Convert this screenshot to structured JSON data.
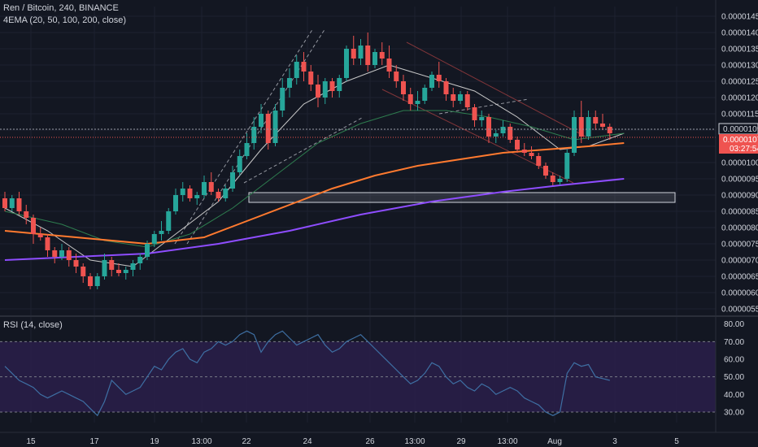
{
  "header": {
    "symbol_line": "Ren / Bitcoin, 240, BINANCE",
    "indicator_line": "4EMA (20, 50, 100, 200, close)"
  },
  "rsi_panel": {
    "title": "RSI (14, close)"
  },
  "price_badges": {
    "current": "0.00001095",
    "last": "0.00001074",
    "countdown": "03:27:54"
  },
  "colors": {
    "background": "#131722",
    "grid": "#1e2230",
    "up": "#26a69a",
    "down": "#ef5350",
    "ema20": "#c8c8c8",
    "ema50": "#2e7d4f",
    "ema100": "#ff7a2f",
    "ema200": "#8e4dff",
    "rsi_line": "#3e6fa3",
    "rsi_band": "#2a1f4a"
  },
  "chart_data": {
    "type": "line",
    "price_axis": {
      "ticks": [
        "0.00001450",
        "0.00001400",
        "0.00001350",
        "0.00001300",
        "0.00001250",
        "0.00001200",
        "0.00001150",
        "0.00001100",
        "0.00001050",
        "0.00001000",
        "0.00000950",
        "0.00000900",
        "0.00000850",
        "0.00000800",
        "0.00000750",
        "0.00000700",
        "0.00000650",
        "0.00000600",
        "0.00000550"
      ],
      "ylim": [
        5.3e-06,
        1.48e-05
      ]
    },
    "rsi_axis": {
      "ticks": [
        "80.00",
        "70.00",
        "60.00",
        "50.00",
        "40.00",
        "30.00"
      ],
      "ylim": [
        24,
        84
      ],
      "band": [
        30,
        70
      ]
    },
    "x_labels": [
      "15",
      "17",
      "19",
      "13:00",
      "22",
      "24",
      "26",
      "13:00",
      "29",
      "13:00",
      "Aug",
      "3",
      "5"
    ],
    "candles": [
      [
        8.9,
        9.1,
        8.5,
        8.6
      ],
      [
        8.6,
        9.0,
        8.5,
        8.9
      ],
      [
        8.9,
        9.1,
        8.4,
        8.5
      ],
      [
        8.5,
        8.7,
        8.1,
        8.3
      ],
      [
        8.3,
        8.4,
        7.5,
        7.8
      ],
      [
        7.8,
        8.0,
        7.6,
        7.7
      ],
      [
        7.7,
        7.8,
        7.1,
        7.3
      ],
      [
        7.3,
        7.4,
        6.9,
        7.1
      ],
      [
        7.1,
        7.5,
        7.0,
        7.3
      ],
      [
        7.3,
        7.4,
        6.8,
        7.0
      ],
      [
        7.0,
        7.2,
        6.6,
        6.8
      ],
      [
        6.8,
        6.9,
        6.3,
        6.5
      ],
      [
        6.5,
        6.6,
        6.1,
        6.2
      ],
      [
        6.2,
        6.6,
        6.1,
        6.5
      ],
      [
        6.5,
        7.2,
        6.4,
        7.0
      ],
      [
        7.0,
        7.1,
        6.5,
        6.7
      ],
      [
        6.7,
        6.9,
        6.5,
        6.6
      ],
      [
        6.6,
        6.8,
        6.4,
        6.7
      ],
      [
        6.7,
        7.0,
        6.5,
        6.9
      ],
      [
        6.9,
        7.2,
        6.7,
        7.1
      ],
      [
        7.1,
        7.6,
        7.0,
        7.5
      ],
      [
        7.5,
        7.9,
        7.4,
        7.8
      ],
      [
        7.8,
        8.2,
        7.6,
        7.9
      ],
      [
        7.9,
        8.6,
        7.8,
        8.5
      ],
      [
        8.5,
        9.2,
        8.4,
        9.0
      ],
      [
        9.0,
        9.4,
        8.8,
        9.2
      ],
      [
        9.2,
        9.3,
        8.8,
        8.9
      ],
      [
        8.9,
        9.1,
        8.7,
        9.0
      ],
      [
        9.0,
        9.6,
        8.9,
        9.4
      ],
      [
        9.4,
        9.7,
        9.0,
        9.1
      ],
      [
        9.1,
        9.2,
        8.8,
        8.9
      ],
      [
        8.9,
        9.3,
        8.8,
        9.2
      ],
      [
        9.2,
        9.9,
        9.1,
        9.7
      ],
      [
        9.7,
        10.4,
        9.6,
        10.2
      ],
      [
        10.2,
        10.9,
        10.1,
        10.6
      ],
      [
        10.6,
        11.4,
        10.4,
        11.1
      ],
      [
        11.1,
        11.8,
        10.9,
        11.5
      ],
      [
        11.5,
        11.6,
        10.4,
        10.6
      ],
      [
        10.6,
        11.8,
        10.5,
        11.6
      ],
      [
        11.6,
        12.6,
        11.4,
        12.3
      ],
      [
        12.3,
        12.9,
        12.0,
        12.6
      ],
      [
        12.6,
        13.3,
        12.4,
        13.1
      ],
      [
        13.1,
        13.4,
        12.5,
        12.8
      ],
      [
        12.8,
        13.0,
        12.2,
        12.4
      ],
      [
        12.4,
        12.7,
        11.7,
        12.0
      ],
      [
        12.0,
        12.6,
        11.8,
        12.5
      ],
      [
        12.5,
        12.6,
        12.0,
        12.2
      ],
      [
        12.2,
        12.7,
        12.0,
        12.6
      ],
      [
        12.6,
        13.6,
        12.5,
        13.5
      ],
      [
        13.5,
        13.9,
        13.0,
        13.2
      ],
      [
        13.2,
        13.8,
        13.0,
        13.6
      ],
      [
        13.6,
        14.0,
        12.8,
        13.0
      ],
      [
        13.0,
        13.5,
        12.9,
        13.4
      ],
      [
        13.4,
        13.7,
        13.0,
        13.2
      ],
      [
        13.2,
        13.6,
        12.6,
        12.8
      ],
      [
        12.8,
        13.0,
        12.3,
        12.5
      ],
      [
        12.5,
        12.7,
        11.9,
        12.1
      ],
      [
        12.1,
        12.3,
        11.6,
        11.8
      ],
      [
        11.8,
        12.2,
        11.6,
        11.9
      ],
      [
        11.9,
        12.4,
        11.8,
        12.3
      ],
      [
        12.3,
        12.8,
        12.2,
        12.7
      ],
      [
        12.7,
        13.1,
        12.3,
        12.5
      ],
      [
        12.5,
        12.6,
        11.9,
        12.1
      ],
      [
        12.1,
        12.3,
        11.7,
        11.9
      ],
      [
        11.9,
        12.2,
        11.8,
        12.1
      ],
      [
        12.1,
        12.2,
        11.6,
        11.7
      ],
      [
        11.7,
        11.8,
        11.1,
        11.3
      ],
      [
        11.3,
        11.6,
        11.1,
        11.4
      ],
      [
        11.4,
        11.5,
        10.6,
        10.8
      ],
      [
        10.8,
        11.0,
        10.6,
        10.9
      ],
      [
        10.9,
        11.3,
        10.8,
        11.1
      ],
      [
        11.1,
        11.2,
        10.6,
        10.7
      ],
      [
        10.7,
        10.8,
        10.3,
        10.4
      ],
      [
        10.4,
        10.6,
        10.2,
        10.3
      ],
      [
        10.3,
        10.5,
        10.1,
        10.2
      ],
      [
        10.2,
        10.3,
        9.8,
        9.9
      ],
      [
        9.9,
        10.0,
        9.5,
        9.6
      ],
      [
        9.6,
        9.7,
        9.3,
        9.4
      ],
      [
        9.4,
        9.6,
        9.3,
        9.5
      ],
      [
        9.5,
        10.4,
        9.4,
        10.3
      ],
      [
        10.3,
        11.6,
        10.2,
        11.4
      ],
      [
        11.4,
        11.9,
        10.6,
        10.8
      ],
      [
        10.8,
        11.6,
        10.7,
        11.4
      ],
      [
        11.4,
        11.6,
        11.0,
        11.2
      ],
      [
        11.2,
        11.5,
        11.0,
        11.1
      ],
      [
        11.1,
        11.2,
        10.7,
        10.9
      ]
    ],
    "ema_series": [
      {
        "name": "EMA 20",
        "points": [
          [
            0,
            8.6
          ],
          [
            6,
            7.9
          ],
          [
            12,
            7.0
          ],
          [
            18,
            6.8
          ],
          [
            24,
            7.8
          ],
          [
            30,
            8.8
          ],
          [
            36,
            10.4
          ],
          [
            42,
            11.8
          ],
          [
            48,
            12.5
          ],
          [
            54,
            13.0
          ],
          [
            60,
            12.6
          ],
          [
            66,
            12.2
          ],
          [
            72,
            11.4
          ],
          [
            78,
            10.4
          ],
          [
            82,
            10.5
          ],
          [
            87,
            10.9
          ]
        ]
      },
      {
        "name": "EMA 50",
        "points": [
          [
            0,
            8.5
          ],
          [
            8,
            8.1
          ],
          [
            14,
            7.6
          ],
          [
            20,
            7.4
          ],
          [
            26,
            7.8
          ],
          [
            32,
            8.6
          ],
          [
            38,
            9.6
          ],
          [
            44,
            10.6
          ],
          [
            50,
            11.2
          ],
          [
            56,
            11.6
          ],
          [
            62,
            11.6
          ],
          [
            68,
            11.4
          ],
          [
            74,
            11.1
          ],
          [
            80,
            10.7
          ],
          [
            87,
            10.9
          ]
        ]
      },
      {
        "name": "EMA 100",
        "points": [
          [
            0,
            7.9
          ],
          [
            10,
            7.7
          ],
          [
            20,
            7.5
          ],
          [
            28,
            7.7
          ],
          [
            34,
            8.2
          ],
          [
            40,
            8.7
          ],
          [
            46,
            9.2
          ],
          [
            52,
            9.6
          ],
          [
            58,
            9.9
          ],
          [
            64,
            10.1
          ],
          [
            70,
            10.3
          ],
          [
            76,
            10.4
          ],
          [
            82,
            10.5
          ],
          [
            87,
            10.6
          ]
        ]
      },
      {
        "name": "EMA 200",
        "points": [
          [
            0,
            7.0
          ],
          [
            10,
            7.1
          ],
          [
            20,
            7.2
          ],
          [
            30,
            7.5
          ],
          [
            40,
            7.9
          ],
          [
            50,
            8.4
          ],
          [
            60,
            8.8
          ],
          [
            70,
            9.1
          ],
          [
            78,
            9.3
          ],
          [
            87,
            9.5
          ]
        ]
      }
    ],
    "rsi_values": [
      56,
      52,
      48,
      46,
      44,
      40,
      38,
      40,
      42,
      40,
      38,
      36,
      32,
      28,
      36,
      48,
      44,
      40,
      42,
      44,
      50,
      56,
      54,
      60,
      64,
      66,
      60,
      58,
      64,
      66,
      70,
      68,
      70,
      74,
      76,
      74,
      64,
      70,
      74,
      76,
      72,
      68,
      70,
      72,
      74,
      68,
      64,
      66,
      70,
      72,
      74,
      70,
      66,
      62,
      58,
      54,
      50,
      46,
      48,
      52,
      58,
      56,
      50,
      46,
      48,
      44,
      42,
      46,
      44,
      40,
      42,
      44,
      42,
      38,
      36,
      34,
      30,
      28,
      30,
      52,
      58,
      56,
      57,
      50,
      49,
      48
    ]
  }
}
